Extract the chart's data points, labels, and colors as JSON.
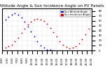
{
  "title": "Sun Altitude Angle & Sun Incidence Angle on PV Panels",
  "legend_labels": [
    "Sun Altitude Angle",
    "Sun Incidence Angle"
  ],
  "legend_colors": [
    "#0000cc",
    "#cc0000"
  ],
  "x_values_alt": [
    0,
    1,
    2,
    3,
    4,
    5,
    6,
    7,
    8,
    9,
    10,
    11,
    12,
    13,
    14,
    15,
    16
  ],
  "altitude_y": [
    55,
    62,
    68,
    72,
    75,
    72,
    66,
    58,
    48,
    38,
    28,
    18,
    10,
    5,
    2,
    1,
    0
  ],
  "x_values_inc": [
    0,
    1,
    2,
    3,
    4,
    5,
    6,
    7,
    8,
    9,
    10,
    11,
    12,
    13,
    14,
    15,
    16,
    17,
    18,
    19,
    20,
    21,
    22,
    23,
    24,
    25,
    26,
    27,
    28
  ],
  "incidence_y": [
    2,
    5,
    8,
    12,
    18,
    26,
    35,
    44,
    52,
    58,
    62,
    64,
    63,
    60,
    54,
    46,
    37,
    28,
    19,
    12,
    7,
    4,
    5,
    8,
    14,
    22,
    32,
    44,
    56
  ],
  "xlim": [
    0,
    28
  ],
  "ylim": [
    0,
    85
  ],
  "yticks": [
    0,
    10,
    20,
    30,
    40,
    50,
    60,
    70,
    80
  ],
  "xtick_labels": [
    "4:00",
    "5:00",
    "6:00",
    "7:00",
    "8:00",
    "9:00",
    "10:00",
    "11:00",
    "12:00",
    "13:00",
    "14:00",
    "15:00",
    "16:00",
    "17:00",
    "18:00",
    "19:00",
    "20:00",
    "21:00",
    "22:00"
  ],
  "background_color": "#ffffff",
  "grid_color": "#bbbbbb",
  "title_fontsize": 4.2,
  "tick_fontsize": 2.8,
  "legend_fontsize": 2.5,
  "marker_size": 1.3
}
